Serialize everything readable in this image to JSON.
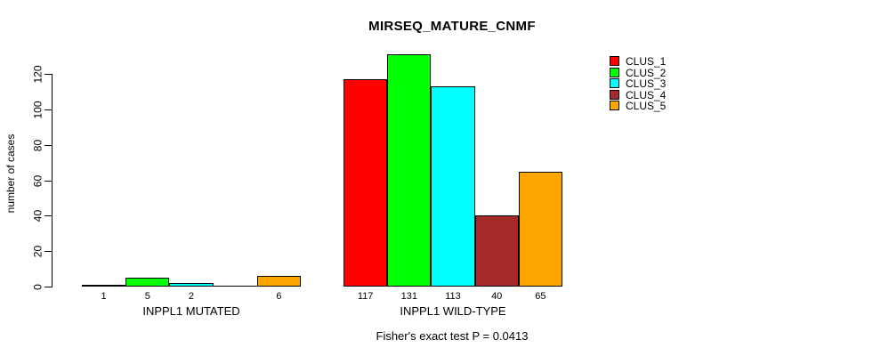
{
  "chart_data": {
    "type": "bar",
    "title": "MIRSEQ_MATURE_CNMF",
    "ylabel": "number of cases",
    "xlabel": "",
    "annotation": "Fisher's exact test P = 0.0413",
    "yticks": [
      0,
      20,
      40,
      60,
      80,
      100,
      120
    ],
    "ylim": [
      0,
      131
    ],
    "grid": false,
    "legend_position": "top-right",
    "series_names": [
      "CLUS_1",
      "CLUS_2",
      "CLUS_3",
      "CLUS_4",
      "CLUS_5"
    ],
    "series_colors": [
      "#FF0000",
      "#00FF00",
      "#00FFFF",
      "#A52A2A",
      "#FFA500"
    ],
    "groups": [
      {
        "label": "INPPL1 MUTATED",
        "values": [
          1,
          5,
          2,
          0,
          6
        ]
      },
      {
        "label": "INPPL1 WILD-TYPE",
        "values": [
          117,
          131,
          113,
          40,
          65
        ]
      }
    ],
    "bar_value_labels_shown": [
      "1",
      "5",
      "2",
      "",
      "6",
      "117",
      "131",
      "113",
      "40",
      "65"
    ]
  },
  "legend": {
    "items": [
      {
        "label": "CLUS_1",
        "color": "#FF0000"
      },
      {
        "label": "CLUS_2",
        "color": "#00FF00"
      },
      {
        "label": "CLUS_3",
        "color": "#00FFFF"
      },
      {
        "label": "CLUS_4",
        "color": "#A52A2A"
      },
      {
        "label": "CLUS_5",
        "color": "#FFA500"
      }
    ]
  }
}
